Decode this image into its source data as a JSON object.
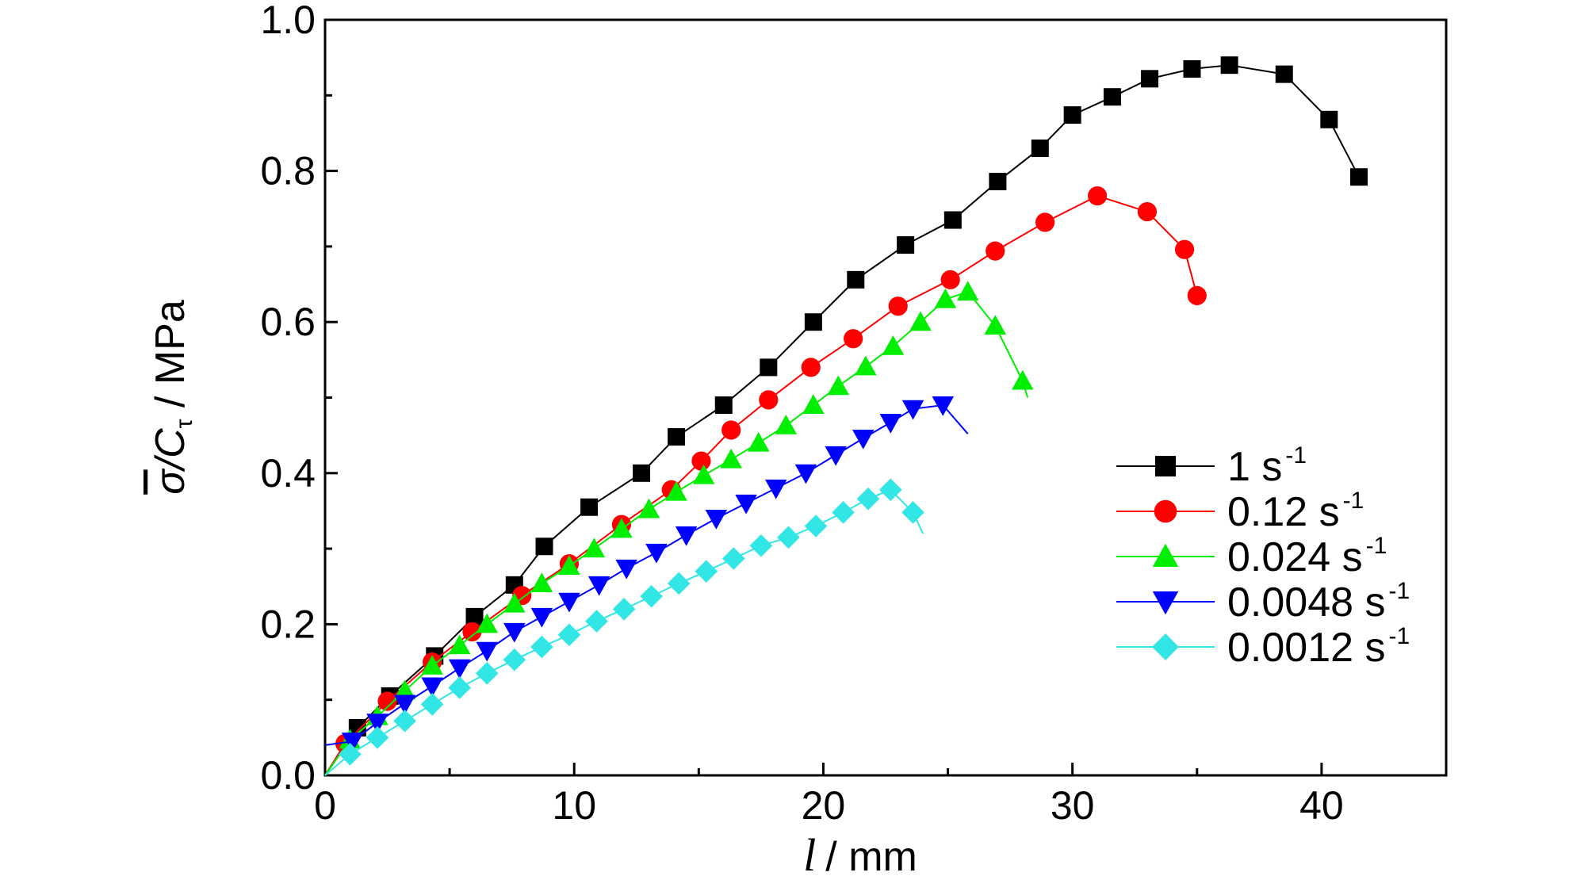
{
  "chart_data": {
    "type": "line",
    "xlabel_var": "l",
    "xlabel_unit": "/ mm",
    "ylabel_sigma": "σ",
    "ylabel_mid": "/C",
    "ylabel_sub": "τ",
    "ylabel_unit": " / MPa",
    "xlim": [
      0,
      45
    ],
    "ylim": [
      0,
      1.0
    ],
    "x_ticks": [
      0,
      10,
      20,
      30,
      40
    ],
    "x_tick_labels": [
      "0",
      "10",
      "20",
      "30",
      "40"
    ],
    "y_ticks": [
      0,
      0.2,
      0.4,
      0.6,
      0.8,
      1.0
    ],
    "y_tick_labels": [
      "0.0",
      "0.2",
      "0.4",
      "0.6",
      "0.8",
      "1.0"
    ],
    "grid": false,
    "legend_position": "right",
    "series": [
      {
        "name": "1 s",
        "name_sup": "-1",
        "color": "#000000",
        "marker": "square",
        "x": [
          0,
          1.3,
          2.6,
          4.4,
          6.0,
          7.6,
          8.8,
          10.6,
          12.7,
          14.1,
          16.0,
          17.8,
          19.6,
          21.3,
          23.3,
          25.2,
          27.0,
          28.7,
          30.0,
          31.6,
          33.1,
          34.8,
          36.3,
          38.5,
          40.3,
          41.5
        ],
        "y": [
          0,
          0.063,
          0.105,
          0.158,
          0.21,
          0.252,
          0.303,
          0.355,
          0.4,
          0.448,
          0.49,
          0.54,
          0.6,
          0.656,
          0.702,
          0.735,
          0.786,
          0.83,
          0.874,
          0.898,
          0.922,
          0.935,
          0.94,
          0.928,
          0.868,
          0.792
        ]
      },
      {
        "name": "0.12 s",
        "name_sup": "-1",
        "color": "#ff0000",
        "marker": "circle",
        "x": [
          0,
          0.8,
          2.5,
          4.3,
          5.9,
          7.9,
          9.8,
          11.9,
          13.9,
          15.1,
          16.3,
          17.8,
          19.5,
          21.2,
          23.0,
          25.1,
          26.9,
          28.9,
          31.0,
          33.0,
          34.5,
          35.0
        ],
        "y": [
          0,
          0.042,
          0.098,
          0.15,
          0.19,
          0.238,
          0.28,
          0.332,
          0.378,
          0.416,
          0.457,
          0.497,
          0.54,
          0.578,
          0.621,
          0.656,
          0.694,
          0.732,
          0.767,
          0.746,
          0.696,
          0.635
        ]
      },
      {
        "name": "0.024 s",
        "name_sup": "-1",
        "color": "#00ee00",
        "marker": "triangle-up",
        "x": [
          0,
          1.0,
          2.1,
          3.2,
          4.3,
          5.4,
          6.5,
          7.6,
          8.7,
          9.8,
          10.8,
          11.9,
          13.0,
          14.1,
          15.2,
          16.3,
          17.4,
          18.5,
          19.6,
          20.6,
          21.7,
          22.8,
          23.9,
          24.9,
          25.8,
          26.9,
          28.0,
          28.2
        ],
        "y": [
          0,
          0.047,
          0.078,
          0.112,
          0.145,
          0.172,
          0.2,
          0.227,
          0.254,
          0.277,
          0.3,
          0.326,
          0.352,
          0.375,
          0.397,
          0.418,
          0.44,
          0.463,
          0.49,
          0.515,
          0.541,
          0.568,
          0.6,
          0.63,
          0.64,
          0.595,
          0.522,
          0.5
        ]
      },
      {
        "name": "0.0048 s",
        "name_sup": "-1",
        "color": "#0000ff",
        "marker": "triangle-down",
        "x": [
          0,
          1.1,
          2.1,
          3.2,
          4.3,
          5.4,
          6.5,
          7.6,
          8.7,
          9.8,
          11.0,
          12.1,
          13.3,
          14.5,
          15.7,
          16.9,
          18.1,
          19.3,
          20.5,
          21.6,
          22.7,
          23.6,
          24.8,
          25.8
        ],
        "y": [
          0.04,
          0.045,
          0.07,
          0.095,
          0.118,
          0.142,
          0.165,
          0.19,
          0.21,
          0.23,
          0.252,
          0.274,
          0.295,
          0.318,
          0.34,
          0.36,
          0.38,
          0.4,
          0.424,
          0.446,
          0.467,
          0.485,
          0.49,
          0.452
        ]
      },
      {
        "name": "0.0012 s",
        "name_sup": "-1",
        "color": "#33e6e6",
        "marker": "diamond",
        "x": [
          0,
          1.0,
          2.1,
          3.2,
          4.3,
          5.4,
          6.5,
          7.6,
          8.7,
          9.8,
          10.9,
          12.0,
          13.1,
          14.2,
          15.3,
          16.4,
          17.5,
          18.6,
          19.7,
          20.8,
          21.8,
          22.7,
          23.6,
          24.0
        ],
        "y": [
          0,
          0.028,
          0.05,
          0.072,
          0.094,
          0.116,
          0.135,
          0.153,
          0.17,
          0.186,
          0.204,
          0.22,
          0.237,
          0.254,
          0.27,
          0.287,
          0.304,
          0.315,
          0.33,
          0.348,
          0.366,
          0.378,
          0.348,
          0.32
        ]
      }
    ]
  }
}
